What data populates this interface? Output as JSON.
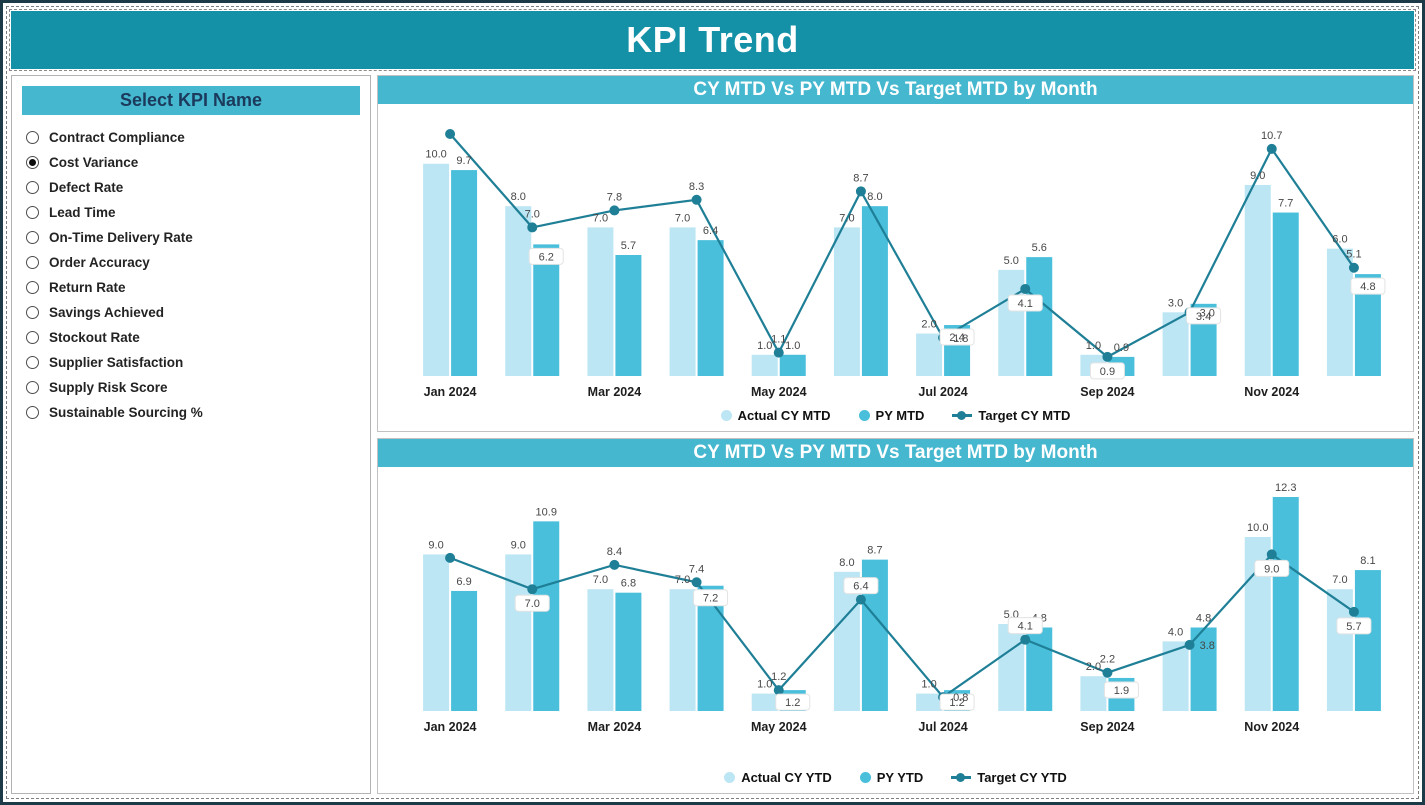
{
  "header": {
    "title": "KPI Trend"
  },
  "sidebar": {
    "title": "Select KPI Name",
    "options": [
      {
        "label": "Contract Compliance",
        "selected": false
      },
      {
        "label": "Cost Variance",
        "selected": true
      },
      {
        "label": "Defect Rate",
        "selected": false
      },
      {
        "label": "Lead Time",
        "selected": false
      },
      {
        "label": "On-Time Delivery Rate",
        "selected": false
      },
      {
        "label": "Order Accuracy",
        "selected": false
      },
      {
        "label": "Return Rate",
        "selected": false
      },
      {
        "label": "Savings Achieved",
        "selected": false
      },
      {
        "label": "Stockout Rate",
        "selected": false
      },
      {
        "label": "Supplier Satisfaction",
        "selected": false
      },
      {
        "label": "Supply Risk Score",
        "selected": false
      },
      {
        "label": "Sustainable Sourcing %",
        "selected": false
      }
    ]
  },
  "colors": {
    "header_bg": "#1591A7",
    "panel_title_bg": "#45B7CF",
    "bar_light": "#BCE6F4",
    "bar_dark": "#49BFDB",
    "line": "#1E7F96"
  },
  "chart_data": [
    {
      "type": "bar+line",
      "title": "CY MTD Vs PY MTD Vs Target MTD by Month",
      "categories": [
        "Jan 2024",
        "Feb 2024",
        "Mar 2024",
        "Apr 2024",
        "May 2024",
        "Jun 2024",
        "Jul 2024",
        "Aug 2024",
        "Sep 2024",
        "Oct 2024",
        "Nov 2024",
        "Dec 2024"
      ],
      "visible_x_ticks": [
        "Jan 2024",
        "Mar 2024",
        "May 2024",
        "Jul 2024",
        "Sep 2024",
        "Nov 2024"
      ],
      "ylim": [
        0,
        12
      ],
      "grid": false,
      "legend_position": "bottom",
      "series": [
        {
          "name": "Actual CY MTD",
          "type": "bar",
          "color": "#BCE6F4",
          "values": [
            10.0,
            8.0,
            7.0,
            7.0,
            1.0,
            7.0,
            2.0,
            5.0,
            1.0,
            3.0,
            9.0,
            6.0
          ],
          "labels": [
            "10.0",
            "8.0",
            "7.0",
            "7.0",
            "1.0",
            "7.0",
            "2.0",
            "5.0",
            "1.0",
            "3.0",
            "9.0",
            "6.0"
          ],
          "label_pos": [
            "above",
            "above",
            "above",
            "above",
            "above",
            "above",
            "above",
            "above",
            "above",
            "above",
            "above",
            "above"
          ]
        },
        {
          "name": "PY MTD",
          "type": "bar",
          "color": "#49BFDB",
          "values": [
            9.7,
            6.2,
            5.7,
            6.4,
            1.0,
            8.0,
            2.4,
            5.6,
            0.9,
            3.4,
            7.7,
            4.8
          ],
          "labels": [
            "9.7",
            "6.2",
            "5.7",
            "6.4",
            "1.0",
            "8.0",
            "2.4",
            "5.6",
            "0.9",
            "3.4",
            "7.7",
            "4.8"
          ],
          "label_pos": [
            "above",
            "in",
            "above",
            "above",
            "above",
            "above",
            "in",
            "above",
            "above",
            "in",
            "above",
            "in"
          ]
        },
        {
          "name": "Target CY MTD",
          "type": "line",
          "color": "#1E7F96",
          "values": [
            11.4,
            7.0,
            7.8,
            8.3,
            1.1,
            8.7,
            1.8,
            4.1,
            0.9,
            3.0,
            10.7,
            5.1
          ],
          "labels": [
            "",
            "7.0",
            "7.8",
            "8.3",
            "1.1",
            "8.7",
            "1.8",
            "4.1",
            "0.9",
            "3.0",
            "10.7",
            "5.1"
          ],
          "label_pos": [
            "none",
            "above",
            "above",
            "above",
            "above",
            "above",
            "right",
            "boxbelow",
            "boxbelow",
            "right",
            "above",
            "above"
          ]
        }
      ]
    },
    {
      "type": "bar+line",
      "title": "CY MTD Vs PY MTD Vs Target MTD by Month",
      "categories": [
        "Jan 2024",
        "Feb 2024",
        "Mar 2024",
        "Apr 2024",
        "May 2024",
        "Jun 2024",
        "Jul 2024",
        "Aug 2024",
        "Sep 2024",
        "Oct 2024",
        "Nov 2024",
        "Dec 2024"
      ],
      "visible_x_ticks": [
        "Jan 2024",
        "Mar 2024",
        "May 2024",
        "Jul 2024",
        "Sep 2024",
        "Nov 2024"
      ],
      "ylim": [
        0,
        13
      ],
      "grid": false,
      "legend_position": "bottom",
      "series": [
        {
          "name": "Actual CY YTD",
          "type": "bar",
          "color": "#BCE6F4",
          "values": [
            9.0,
            9.0,
            7.0,
            7.0,
            1.0,
            8.0,
            1.0,
            5.0,
            2.0,
            4.0,
            10.0,
            7.0
          ],
          "labels": [
            "9.0",
            "9.0",
            "7.0",
            "7.0",
            "1.0",
            "8.0",
            "1.0",
            "5.0",
            "2.0",
            "4.0",
            "10.0",
            "7.0"
          ],
          "label_pos": [
            "above",
            "above",
            "above",
            "above",
            "above",
            "above",
            "above",
            "above",
            "above",
            "above",
            "above",
            "above"
          ]
        },
        {
          "name": "PY YTD",
          "type": "bar",
          "color": "#49BFDB",
          "values": [
            6.9,
            10.9,
            6.8,
            7.2,
            1.2,
            8.7,
            1.2,
            4.8,
            1.9,
            4.8,
            12.3,
            8.1
          ],
          "labels": [
            "6.9",
            "10.9",
            "6.8",
            "7.2",
            "1.2",
            "8.7",
            "1.2",
            "4.8",
            "1.9",
            "4.8",
            "12.3",
            "8.1"
          ],
          "label_pos": [
            "above",
            "above",
            "above",
            "in",
            "in",
            "above",
            "in",
            "above",
            "in",
            "above",
            "above",
            "above"
          ]
        },
        {
          "name": "Target CY YTD",
          "type": "line",
          "color": "#1E7F96",
          "values": [
            8.8,
            7.0,
            8.4,
            7.4,
            1.2,
            6.4,
            0.8,
            4.1,
            2.2,
            3.8,
            9.0,
            5.7
          ],
          "labels": [
            "",
            "7.0",
            "8.4",
            "7.4",
            "1.2",
            "6.4",
            "0.8",
            "4.1",
            "2.2",
            "3.8",
            "9.0",
            "5.7"
          ],
          "label_pos": [
            "none",
            "boxbelow",
            "above",
            "above",
            "above",
            "boxabove",
            "right",
            "boxabove",
            "above",
            "right",
            "boxbelow",
            "boxbelow"
          ]
        }
      ]
    }
  ]
}
